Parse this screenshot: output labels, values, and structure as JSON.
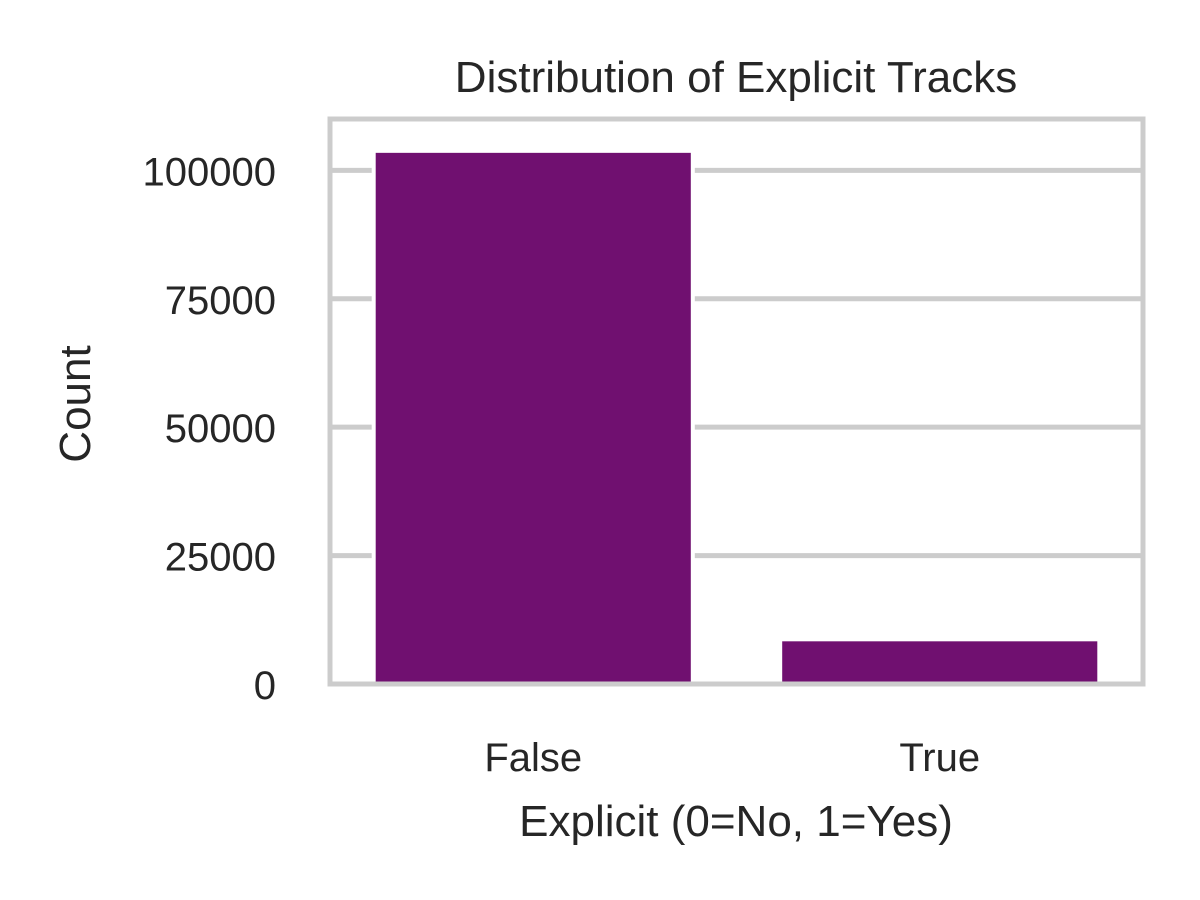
{
  "chart_data": {
    "type": "bar",
    "title": "Distribution of Explicit Tracks",
    "xlabel": "Explicit (0=No, 1=Yes)",
    "ylabel": "Count",
    "categories": [
      "False",
      "True"
    ],
    "values": [
      103800,
      8700
    ],
    "ylim": [
      0,
      110000
    ],
    "yticks": [
      0,
      25000,
      50000,
      75000,
      100000
    ],
    "ytick_labels": [
      "0",
      "25000",
      "50000",
      "75000",
      "100000"
    ],
    "grid": "horizontal",
    "bar_color": "#701070",
    "grid_color": "#cccccc",
    "frame_color": "#cccccc",
    "text_color": "#262626"
  }
}
